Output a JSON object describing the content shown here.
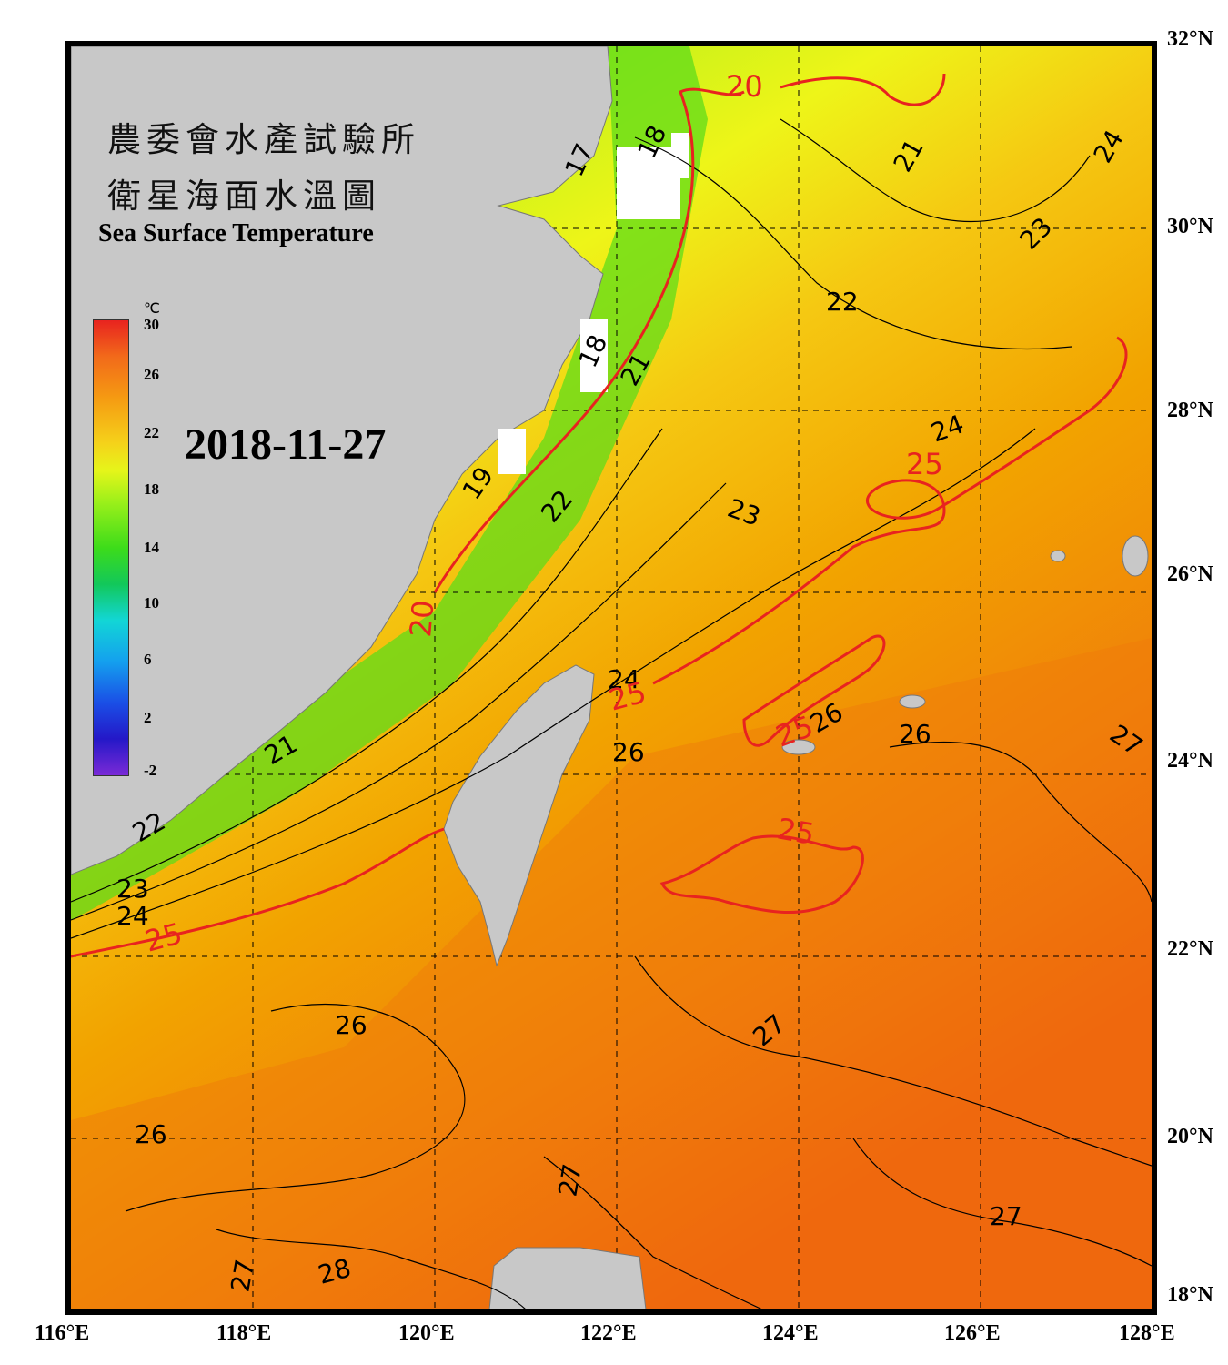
{
  "header": {
    "title_zh_line1": "農委會水產試驗所",
    "title_zh_line2": "衛星海面水溫圖",
    "title_en": "Sea Surface Temperature",
    "date": "2018-11-27"
  },
  "colorbar": {
    "unit": "℃",
    "ticks": [
      "30",
      "26",
      "22",
      "18",
      "14",
      "10",
      "6",
      "2",
      "-2"
    ]
  },
  "axes": {
    "lat_labels": [
      "32°N",
      "30°N",
      "28°N",
      "26°N",
      "24°N",
      "22°N",
      "20°N",
      "18°N"
    ],
    "lon_labels": [
      "116°E",
      "118°E",
      "120°E",
      "122°E",
      "124°E",
      "126°E",
      "128°E"
    ]
  },
  "contour_labels": {
    "black": [
      "17",
      "18",
      "18",
      "19",
      "21",
      "21",
      "21",
      "22",
      "22",
      "22",
      "23",
      "23",
      "23",
      "24",
      "24",
      "24",
      "24",
      "26",
      "26",
      "26",
      "26",
      "26",
      "27",
      "27",
      "27",
      "27",
      "27",
      "27",
      "28"
    ],
    "red": [
      "20",
      "20",
      "25",
      "25",
      "25",
      "25",
      "25"
    ]
  },
  "colors": {
    "land": "#c8c8c8",
    "cloud": "#ffffff",
    "frame": "#000000",
    "contour_black": "#000000",
    "contour_red": "#e8231f",
    "sst_cold": "#3ddc1a",
    "sst_mid": "#e6f51a",
    "sst_warm": "#f2a300",
    "sst_hot": "#f0600f"
  }
}
